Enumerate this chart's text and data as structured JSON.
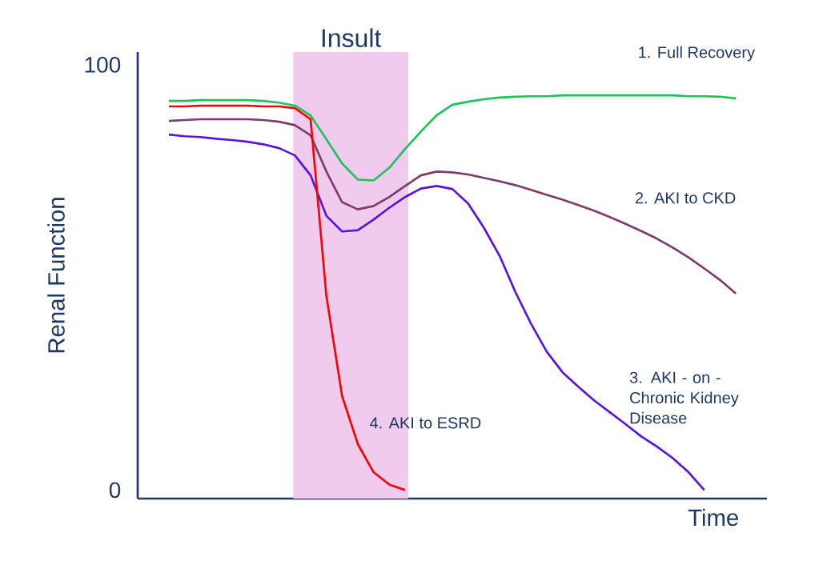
{
  "chart_data": {
    "type": "line",
    "xlabel": "Time",
    "ylabel": "Renal Function",
    "categories": [
      null,
      null,
      null,
      null,
      null,
      null,
      null,
      null,
      null,
      null,
      null,
      null,
      null,
      null,
      null,
      null,
      null,
      null,
      null,
      null,
      null,
      null,
      null,
      null,
      null,
      null,
      null,
      null,
      null,
      null,
      null,
      null,
      null,
      null,
      null,
      null,
      null
    ],
    "ylim": [
      -2,
      103
    ],
    "yticks": [
      0,
      100
    ],
    "tick_labels": "y",
    "legend": false,
    "grid": false,
    "marker": "none",
    "line_style": "solid",
    "annotations": [
      "Insult"
    ],
    "series": [
      {
        "name": "1. Full Recovery",
        "color": "#1ec45a",
        "values": [
          91.5,
          91.5,
          91.7,
          91.7,
          91.7,
          91.7,
          91.5,
          91.1,
          90.4,
          88.1,
          82.5,
          76.8,
          73.0,
          72.8,
          75.8,
          80.2,
          84.3,
          88.1,
          90.6,
          91.3,
          91.9,
          92.3,
          92.5,
          92.6,
          92.6,
          92.8,
          92.8,
          92.8,
          92.8,
          92.8,
          92.8,
          92.8,
          92.8,
          92.6,
          92.6,
          92.5,
          92.1
        ]
      },
      {
        "name": "2. AKI to CKD",
        "color": "#7d3c6e",
        "values": [
          86.8,
          87.0,
          87.2,
          87.2,
          87.2,
          87.2,
          87.0,
          86.6,
          85.8,
          83.4,
          74.9,
          67.7,
          66.0,
          66.8,
          68.9,
          71.5,
          74.0,
          74.9,
          74.7,
          74.2,
          73.4,
          72.6,
          71.7,
          70.6,
          69.4,
          68.3,
          67.0,
          65.7,
          64.2,
          62.6,
          60.9,
          59.1,
          57.0,
          54.7,
          52.1,
          49.4,
          46.2
        ]
      },
      {
        "name": "3. AKI - on - Chronic Kidney Disease",
        "color": "#5a14e0",
        "values": [
          83.6,
          83.2,
          83.0,
          82.6,
          82.3,
          81.9,
          81.3,
          80.4,
          78.7,
          74.0,
          64.5,
          60.8,
          61.1,
          63.6,
          66.4,
          68.9,
          70.9,
          71.5,
          70.8,
          67.4,
          61.7,
          55.1,
          46.6,
          39.1,
          32.5,
          27.7,
          24.3,
          21.1,
          18.3,
          15.5,
          12.6,
          10.2,
          7.5,
          4.2,
          0,
          null,
          null
        ]
      },
      {
        "name": "4. AKI to ESRD",
        "color": "#ff0000",
        "values": [
          90.2,
          90.2,
          90.4,
          90.4,
          90.4,
          90.4,
          90.2,
          90.2,
          89.8,
          87.2,
          45.7,
          22.1,
          10.8,
          4.2,
          1.3,
          0,
          null,
          null,
          null,
          null,
          null,
          null,
          null,
          null,
          null,
          null,
          null,
          null,
          null,
          null,
          null,
          null,
          null,
          null,
          null,
          null,
          null
        ]
      }
    ]
  }
}
